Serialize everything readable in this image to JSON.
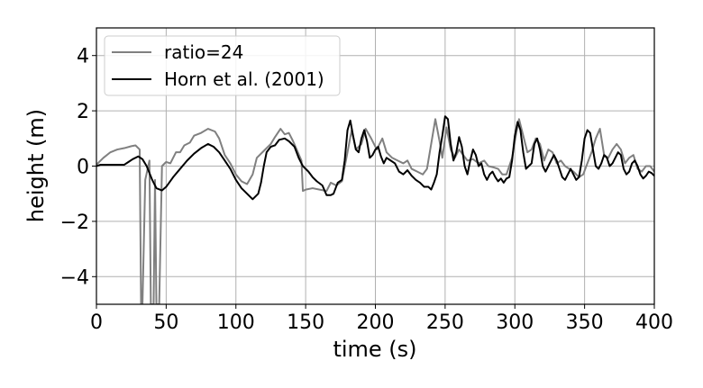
{
  "chart_data": {
    "type": "line",
    "title": "",
    "xlabel": "time (s)",
    "ylabel": "height (m)",
    "xlim": [
      0,
      400
    ],
    "ylim": [
      -5,
      5
    ],
    "xticks": [
      0,
      50,
      100,
      150,
      200,
      250,
      300,
      350,
      400
    ],
    "xtick_labels": [
      "0",
      "50",
      "100",
      "150",
      "200",
      "250",
      "300",
      "350",
      "400"
    ],
    "yticks": [
      -4,
      -2,
      0,
      2,
      4
    ],
    "ytick_labels": [
      "−4",
      "−2",
      "0",
      "2",
      "4"
    ],
    "grid": true,
    "legend_position": "top-left",
    "series": [
      {
        "name": "ratio=24",
        "color": "#808080",
        "points": [
          [
            0,
            0.05
          ],
          [
            5,
            0.3
          ],
          [
            10,
            0.5
          ],
          [
            15,
            0.6
          ],
          [
            20,
            0.65
          ],
          [
            25,
            0.72
          ],
          [
            28,
            0.75
          ],
          [
            31,
            0.6
          ],
          [
            32,
            -5
          ],
          [
            33,
            -5
          ],
          [
            35,
            -0.5
          ],
          [
            38,
            0.2
          ],
          [
            39,
            -5
          ],
          [
            41,
            -5
          ],
          [
            42,
            -0.5
          ],
          [
            43,
            -5
          ],
          [
            45,
            -5
          ],
          [
            47,
            0.0
          ],
          [
            50,
            0.15
          ],
          [
            53,
            0.1
          ],
          [
            57,
            0.5
          ],
          [
            60,
            0.5
          ],
          [
            63,
            0.75
          ],
          [
            67,
            0.85
          ],
          [
            70,
            1.1
          ],
          [
            75,
            1.2
          ],
          [
            80,
            1.35
          ],
          [
            85,
            1.25
          ],
          [
            88,
            1.0
          ],
          [
            92,
            0.4
          ],
          [
            96,
            0.1
          ],
          [
            100,
            -0.3
          ],
          [
            104,
            -0.55
          ],
          [
            108,
            -0.65
          ],
          [
            112,
            -0.3
          ],
          [
            115,
            0.3
          ],
          [
            120,
            0.55
          ],
          [
            125,
            0.8
          ],
          [
            128,
            1.05
          ],
          [
            132,
            1.35
          ],
          [
            135,
            1.15
          ],
          [
            138,
            1.2
          ],
          [
            141,
            0.9
          ],
          [
            144,
            0.55
          ],
          [
            147,
            0.2
          ],
          [
            148,
            -0.9
          ],
          [
            150,
            -0.85
          ],
          [
            155,
            -0.8
          ],
          [
            160,
            -0.85
          ],
          [
            165,
            -0.9
          ],
          [
            168,
            -0.6
          ],
          [
            172,
            -0.7
          ],
          [
            176,
            -0.55
          ],
          [
            180,
            0.5
          ],
          [
            183,
            1.3
          ],
          [
            186,
            0.6
          ],
          [
            190,
            0.8
          ],
          [
            193,
            1.35
          ],
          [
            197,
            1.0
          ],
          [
            201,
            0.6
          ],
          [
            205,
            1.0
          ],
          [
            208,
            0.5
          ],
          [
            212,
            0.3
          ],
          [
            216,
            0.2
          ],
          [
            220,
            0.1
          ],
          [
            223,
            0.2
          ],
          [
            226,
            -0.1
          ],
          [
            230,
            -0.2
          ],
          [
            234,
            -0.3
          ],
          [
            237,
            -0.1
          ],
          [
            240,
            0.8
          ],
          [
            243,
            1.7
          ],
          [
            246,
            0.9
          ],
          [
            248,
            0.3
          ],
          [
            251,
            1.4
          ],
          [
            254,
            0.6
          ],
          [
            257,
            0.3
          ],
          [
            260,
            0.6
          ],
          [
            263,
            0.4
          ],
          [
            266,
            0.2
          ],
          [
            270,
            0.25
          ],
          [
            274,
            0.1
          ],
          [
            278,
            0.2
          ],
          [
            281,
            0.0
          ],
          [
            285,
            -0.05
          ],
          [
            288,
            -0.1
          ],
          [
            291,
            -0.3
          ],
          [
            294,
            -0.3
          ],
          [
            298,
            0.3
          ],
          [
            301,
            1.2
          ],
          [
            303,
            1.7
          ],
          [
            306,
            1.1
          ],
          [
            309,
            0.5
          ],
          [
            312,
            0.6
          ],
          [
            315,
            1.0
          ],
          [
            318,
            0.8
          ],
          [
            321,
            0.2
          ],
          [
            324,
            0.6
          ],
          [
            327,
            0.5
          ],
          [
            330,
            0.1
          ],
          [
            333,
            0.2
          ],
          [
            336,
            0.0
          ],
          [
            339,
            -0.1
          ],
          [
            342,
            -0.2
          ],
          [
            346,
            -0.4
          ],
          [
            349,
            -0.3
          ],
          [
            352,
            0.1
          ],
          [
            355,
            0.5
          ],
          [
            358,
            1.0
          ],
          [
            361,
            1.35
          ],
          [
            364,
            0.4
          ],
          [
            367,
            0.3
          ],
          [
            370,
            0.6
          ],
          [
            373,
            0.8
          ],
          [
            376,
            0.6
          ],
          [
            379,
            0.1
          ],
          [
            382,
            0.3
          ],
          [
            385,
            0.4
          ],
          [
            388,
            -0.1
          ],
          [
            391,
            -0.2
          ],
          [
            394,
            0.0
          ],
          [
            397,
            0.0
          ],
          [
            400,
            -0.2
          ]
        ]
      },
      {
        "name": "Horn et al. (2001)",
        "color": "#000000",
        "points": [
          [
            0,
            0.0
          ],
          [
            3,
            0.05
          ],
          [
            10,
            0.05
          ],
          [
            15,
            0.05
          ],
          [
            20,
            0.05
          ],
          [
            23,
            0.15
          ],
          [
            26,
            0.25
          ],
          [
            30,
            0.35
          ],
          [
            33,
            0.25
          ],
          [
            36,
            0.0
          ],
          [
            40,
            -0.5
          ],
          [
            43,
            -0.8
          ],
          [
            47,
            -0.88
          ],
          [
            50,
            -0.75
          ],
          [
            55,
            -0.4
          ],
          [
            60,
            -0.1
          ],
          [
            65,
            0.2
          ],
          [
            70,
            0.45
          ],
          [
            75,
            0.65
          ],
          [
            80,
            0.8
          ],
          [
            84,
            0.7
          ],
          [
            88,
            0.5
          ],
          [
            92,
            0.2
          ],
          [
            96,
            -0.1
          ],
          [
            100,
            -0.5
          ],
          [
            104,
            -0.8
          ],
          [
            108,
            -1.0
          ],
          [
            112,
            -1.2
          ],
          [
            116,
            -1.0
          ],
          [
            118,
            -0.6
          ],
          [
            120,
            0.0
          ],
          [
            122,
            0.5
          ],
          [
            125,
            0.7
          ],
          [
            128,
            0.75
          ],
          [
            131,
            0.95
          ],
          [
            135,
            1.0
          ],
          [
            138,
            0.9
          ],
          [
            142,
            0.7
          ],
          [
            145,
            0.3
          ],
          [
            148,
            0.0
          ],
          [
            152,
            -0.2
          ],
          [
            155,
            -0.4
          ],
          [
            158,
            -0.55
          ],
          [
            162,
            -0.7
          ],
          [
            165,
            -1.05
          ],
          [
            168,
            -1.05
          ],
          [
            170,
            -1.0
          ],
          [
            173,
            -0.6
          ],
          [
            176,
            -0.5
          ],
          [
            178,
            0.2
          ],
          [
            180,
            1.3
          ],
          [
            182,
            1.65
          ],
          [
            184,
            1.1
          ],
          [
            186,
            0.6
          ],
          [
            188,
            0.5
          ],
          [
            190,
            1.0
          ],
          [
            192,
            1.3
          ],
          [
            194,
            0.9
          ],
          [
            196,
            0.3
          ],
          [
            198,
            0.4
          ],
          [
            200,
            0.6
          ],
          [
            202,
            0.7
          ],
          [
            204,
            0.35
          ],
          [
            206,
            0.1
          ],
          [
            208,
            0.3
          ],
          [
            211,
            0.2
          ],
          [
            214,
            0.1
          ],
          [
            217,
            -0.2
          ],
          [
            220,
            -0.3
          ],
          [
            223,
            -0.15
          ],
          [
            226,
            -0.35
          ],
          [
            229,
            -0.5
          ],
          [
            232,
            -0.6
          ],
          [
            235,
            -0.75
          ],
          [
            238,
            -0.75
          ],
          [
            240,
            -0.85
          ],
          [
            242,
            -0.6
          ],
          [
            244,
            -0.3
          ],
          [
            246,
            0.5
          ],
          [
            248,
            1.1
          ],
          [
            250,
            1.8
          ],
          [
            252,
            1.7
          ],
          [
            254,
            0.8
          ],
          [
            256,
            0.2
          ],
          [
            258,
            0.5
          ],
          [
            260,
            1.05
          ],
          [
            262,
            0.7
          ],
          [
            264,
            0.0
          ],
          [
            266,
            -0.3
          ],
          [
            268,
            0.2
          ],
          [
            270,
            0.6
          ],
          [
            272,
            0.4
          ],
          [
            274,
            0.0
          ],
          [
            276,
            0.1
          ],
          [
            278,
            -0.3
          ],
          [
            280,
            -0.5
          ],
          [
            282,
            -0.3
          ],
          [
            284,
            -0.2
          ],
          [
            286,
            -0.4
          ],
          [
            288,
            -0.55
          ],
          [
            290,
            -0.45
          ],
          [
            292,
            -0.6
          ],
          [
            294,
            -0.45
          ],
          [
            296,
            -0.4
          ],
          [
            298,
            0.2
          ],
          [
            300,
            1.1
          ],
          [
            302,
            1.6
          ],
          [
            304,
            1.3
          ],
          [
            306,
            0.5
          ],
          [
            308,
            -0.1
          ],
          [
            310,
            0.0
          ],
          [
            312,
            0.1
          ],
          [
            314,
            0.8
          ],
          [
            316,
            1.0
          ],
          [
            318,
            0.6
          ],
          [
            320,
            0.0
          ],
          [
            322,
            -0.2
          ],
          [
            324,
            0.0
          ],
          [
            326,
            0.2
          ],
          [
            328,
            0.4
          ],
          [
            330,
            0.2
          ],
          [
            332,
            -0.1
          ],
          [
            334,
            -0.4
          ],
          [
            336,
            -0.5
          ],
          [
            338,
            -0.3
          ],
          [
            340,
            -0.1
          ],
          [
            342,
            -0.3
          ],
          [
            344,
            -0.5
          ],
          [
            346,
            -0.4
          ],
          [
            348,
            0.2
          ],
          [
            350,
            1.0
          ],
          [
            352,
            1.3
          ],
          [
            354,
            1.2
          ],
          [
            356,
            0.6
          ],
          [
            358,
            0.0
          ],
          [
            360,
            -0.1
          ],
          [
            362,
            0.1
          ],
          [
            364,
            0.4
          ],
          [
            366,
            0.3
          ],
          [
            368,
            0.0
          ],
          [
            370,
            0.1
          ],
          [
            372,
            0.3
          ],
          [
            374,
            0.5
          ],
          [
            376,
            0.4
          ],
          [
            378,
            -0.1
          ],
          [
            380,
            -0.3
          ],
          [
            382,
            -0.2
          ],
          [
            384,
            0.1
          ],
          [
            386,
            0.2
          ],
          [
            388,
            0.0
          ],
          [
            390,
            -0.3
          ],
          [
            392,
            -0.45
          ],
          [
            394,
            -0.35
          ],
          [
            396,
            -0.2
          ],
          [
            398,
            -0.25
          ],
          [
            400,
            -0.35
          ]
        ]
      }
    ]
  }
}
